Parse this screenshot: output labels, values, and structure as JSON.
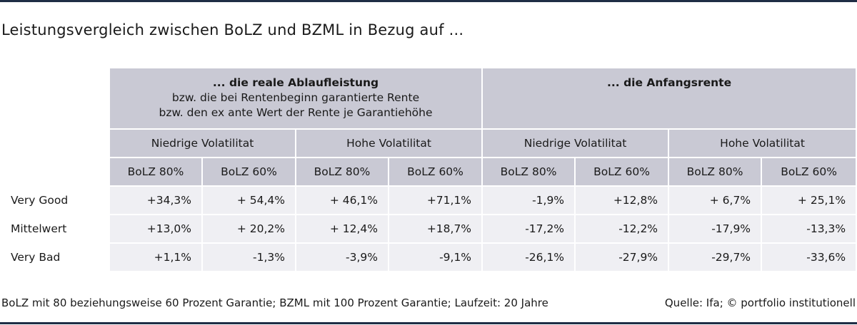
{
  "title": "Leistungsvergleich zwischen BoLZ und BZML in Bezug auf ...",
  "groups": {
    "left": {
      "line1": "... die reale Ablaufleistung",
      "line2": "bzw. die bei Rentenbeginn garantierte Rente",
      "line3": "bzw. den ex ante Wert der Rente je Garantiehöhe"
    },
    "right": {
      "line1": "... die Anfangsrente"
    }
  },
  "volatility": [
    "Niedrige Volatilitat",
    "Hohe Volatilitat",
    "Niedrige Volatilitat",
    "Hohe Volatilitat"
  ],
  "subheaders": [
    "BoLZ 80%",
    "BoLZ 60%",
    "BoLZ 80%",
    "BoLZ 60%",
    "BoLZ 80%",
    "BoLZ 60%",
    "BoLZ 80%",
    "BoLZ 60%"
  ],
  "rows": [
    {
      "label": "Very Good",
      "values": [
        "+34,3%",
        "+ 54,4%",
        "+ 46,1%",
        "+71,1%",
        "-1,9%",
        "+12,8%",
        "+ 6,7%",
        "+ 25,1%"
      ]
    },
    {
      "label": "Mittelwert",
      "values": [
        "+13,0%",
        "+ 20,2%",
        "+ 12,4%",
        "+18,7%",
        "-17,2%",
        "-12,2%",
        "-17,9%",
        "-13,3%"
      ]
    },
    {
      "label": "Very Bad",
      "values": [
        "+1,1%",
        "-1,3%",
        "-3,9%",
        "-9,1%",
        "-26,1%",
        "-27,9%",
        "-29,7%",
        "-33,6%"
      ]
    }
  ],
  "footnote": "BoLZ mit 80 beziehungsweise 60 Prozent Garantie; BZML mit 100 Prozent Garantie; Laufzeit: 20 Jahre",
  "source": "Quelle: Ifa; © portfolio institutionell",
  "colors": {
    "header_bg": "#c9c9d4",
    "cell_bg": "#efeff3",
    "rule": "#1f2d45"
  }
}
